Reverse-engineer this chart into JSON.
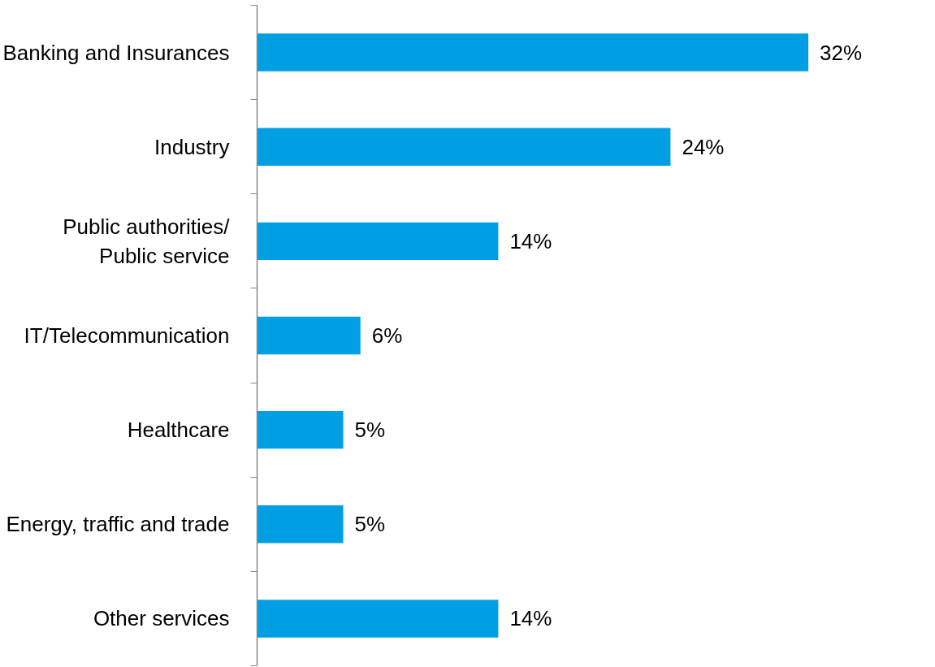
{
  "chart_data": {
    "type": "bar",
    "orientation": "horizontal",
    "categories": [
      "Banking and Insurances",
      "Industry",
      "Public authorities/\nPublic service",
      "IT/Telecommunication",
      "Healthcare",
      "Energy, traffic and trade",
      "Other services"
    ],
    "values": [
      32,
      24,
      14,
      6,
      5,
      5,
      14
    ],
    "value_labels": [
      "32%",
      "24%",
      "14%",
      "6%",
      "5%",
      "5%",
      "14%"
    ],
    "color": "#009fe3",
    "grid": false
  }
}
